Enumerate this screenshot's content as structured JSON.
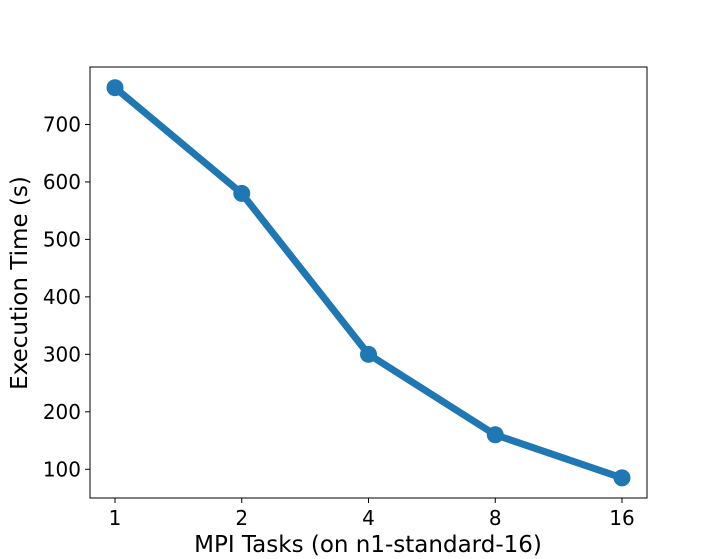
{
  "chart_data": {
    "type": "line",
    "title": "",
    "xlabel": "MPI Tasks (on n1-standard-16)",
    "ylabel": "Execution Time (s)",
    "x_scale": "log2",
    "categories": [
      "1",
      "2",
      "4",
      "8",
      "16"
    ],
    "x": [
      1,
      2,
      4,
      8,
      16
    ],
    "series": [
      {
        "values": [
          764,
          580,
          300,
          160,
          85
        ],
        "color": "#1f77b4",
        "marker": "circle"
      }
    ],
    "yticks": [
      100,
      200,
      300,
      400,
      500,
      600,
      700
    ],
    "ylim": [
      50,
      800
    ],
    "grid": false,
    "legend": "none"
  }
}
